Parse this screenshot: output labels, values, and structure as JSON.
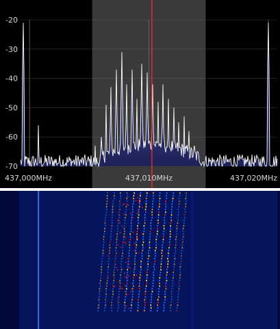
{
  "spectrum": {
    "db_labels": [
      "-20",
      "-30",
      "-40",
      "-50",
      "-60",
      "-70"
    ],
    "db_values": [
      -20,
      -30,
      -40,
      -50,
      -60,
      -70
    ],
    "db_range": [
      -70,
      -20
    ],
    "freq_labels": [
      "437,000MHz",
      "437,010MHz",
      "437,020MHz"
    ],
    "freq_values_mhz": [
      437.0,
      437.01,
      437.02
    ],
    "freq_range_mhz": [
      436.99925,
      437.02075
    ],
    "passband_mhz": [
      437.00525,
      437.01475
    ],
    "tuned_freq_mhz": 437.01025,
    "noise_floor_db": -68.5,
    "peaks": [
      {
        "f": 436.9995,
        "db": -21
      },
      {
        "f": 437.00075,
        "db": -56
      },
      {
        "f": 437.0055,
        "db": -63
      },
      {
        "f": 437.006,
        "db": -60
      },
      {
        "f": 437.0064,
        "db": -49
      },
      {
        "f": 437.0068,
        "db": -43
      },
      {
        "f": 437.0073,
        "db": -37
      },
      {
        "f": 437.00775,
        "db": -31
      },
      {
        "f": 437.00815,
        "db": -42
      },
      {
        "f": 437.0086,
        "db": -37
      },
      {
        "f": 437.009,
        "db": -47
      },
      {
        "f": 437.0094,
        "db": -35
      },
      {
        "f": 437.00985,
        "db": -38
      },
      {
        "f": 437.0103,
        "db": -42
      },
      {
        "f": 437.01075,
        "db": -48
      },
      {
        "f": 437.0112,
        "db": -42
      },
      {
        "f": 437.01165,
        "db": -47
      },
      {
        "f": 437.0121,
        "db": -50
      },
      {
        "f": 437.0125,
        "db": -55
      },
      {
        "f": 437.01295,
        "db": -53
      },
      {
        "f": 437.01335,
        "db": -58
      },
      {
        "f": 437.0138,
        "db": -63
      },
      {
        "f": 437.02,
        "db": -21
      }
    ],
    "colors": {
      "background": "#000000",
      "passband": "#3a3a3a",
      "grid": "#6e6e6e",
      "trace": "#ffffff",
      "fill_top": "#5a5fa8",
      "fill_bottom": "#1e2158",
      "tuned_line": "#ff3030",
      "axis_text": "#d8d8d8"
    }
  },
  "waterfall": {
    "colors": {
      "background": "#000a3a",
      "band_glow": "#0b1d7a",
      "carrier_line": "#4a6ad8",
      "tone_yellow": "#ffd84a",
      "tone_orange": "#ff8a2a",
      "tone_red": "#e02020",
      "tone_blue": "#2a70ff"
    },
    "carrier_freq_mhz": 437.00075,
    "tone_freqs_mhz": [
      437.0065,
      437.00705,
      437.0076,
      437.00815,
      437.0087,
      437.00925,
      437.0098,
      437.01035,
      437.0109,
      437.01145,
      437.012,
      437.01255,
      437.0131
    ],
    "signal_start_mhz": 437.0062,
    "signal_end_mhz": 437.0134
  }
}
